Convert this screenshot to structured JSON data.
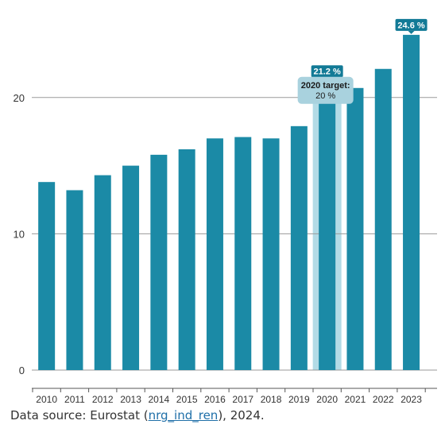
{
  "colors": {
    "bar": "#1b8aa6",
    "highlight_column": "#b3dbe6",
    "badge_bg": "#127a96",
    "badge_text": "#ffffff",
    "target_box_bg": "#a9d2de",
    "grid": "#9a9a9a",
    "axis_text": "#333333",
    "link": "#1f6fa8"
  },
  "chart_data": {
    "type": "bar",
    "title": "",
    "xlabel": "",
    "ylabel": "",
    "categories": [
      "2010",
      "2011",
      "2012",
      "2013",
      "2014",
      "2015",
      "2016",
      "2017",
      "2018",
      "2019",
      "2020",
      "2021",
      "2022",
      "2023"
    ],
    "values": [
      13.8,
      13.2,
      14.3,
      15.0,
      15.8,
      16.2,
      17.0,
      17.1,
      17.0,
      17.9,
      21.2,
      20.7,
      22.1,
      24.6
    ],
    "ylim": [
      0,
      25
    ],
    "yticks": [
      0,
      10,
      20
    ],
    "grid": true,
    "highlight_category": "2020",
    "value_labels": [
      {
        "category": "2020",
        "text": "21.2 %"
      },
      {
        "category": "2023",
        "text": "24.6 %"
      }
    ],
    "target": {
      "category": "2020",
      "value": 20,
      "label_line1": "2020 target:",
      "label_line2": "20 %"
    }
  },
  "source": {
    "prefix": "Data source: Eurostat (",
    "link_text": "nrg_ind_ren",
    "suffix": "), 2024."
  }
}
